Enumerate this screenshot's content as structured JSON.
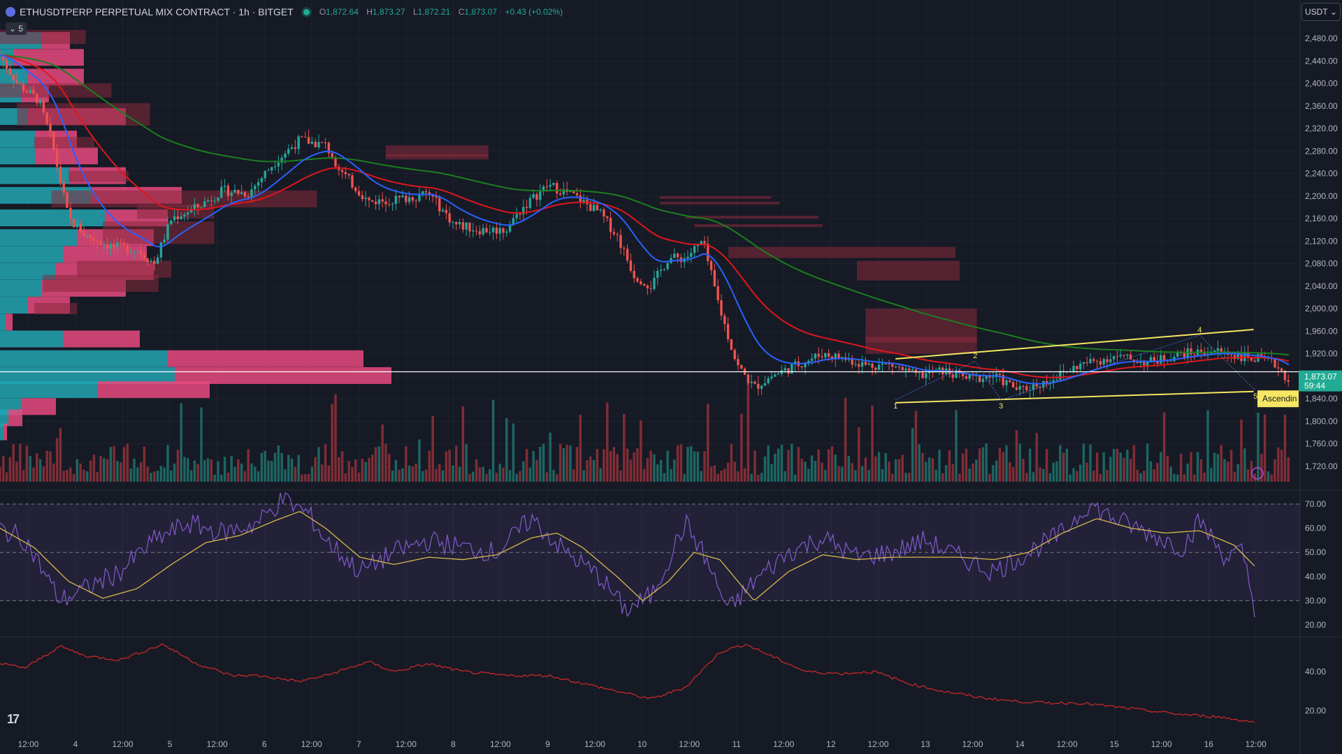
{
  "header": {
    "symbol": "ETHUSDTPERP PERPETUAL MIX CONTRACT · 1h · BITGET",
    "o_label": "O",
    "o": "1,872.64",
    "h_label": "H",
    "h": "1,873.27",
    "l_label": "L",
    "l": "1,872.21",
    "c_label": "C",
    "c": "1,873.07",
    "change": "+0.43 (+0.02%)"
  },
  "collapse_label": "5",
  "currency": "USDT",
  "logo": "17",
  "colors": {
    "bg": "#161a25",
    "up": "#26a69a",
    "down": "#ef5350",
    "ema_fast": "#2962ff",
    "ema_mid": "#e0161c",
    "ema_slow": "#1b7f1e",
    "channel": "#f5e663",
    "rsi": "#7e57c2",
    "rsi_ma": "#d8b84a",
    "bottom_line": "#c62828"
  },
  "price_label": {
    "value": "1,873.07",
    "countdown": "59:44"
  },
  "pattern_label": "Ascendin",
  "chart_data": {
    "type": "candlestick",
    "price_axis": {
      "min": 1700,
      "max": 2500,
      "ticks": [
        "2,480.00",
        "2,440.00",
        "2,400.00",
        "2,360.00",
        "2,320.00",
        "2,280.00",
        "2,240.00",
        "2,200.00",
        "2,160.00",
        "2,120.00",
        "2,080.00",
        "2,040.00",
        "2,000.00",
        "1,960.00",
        "1,920.00",
        "1,880.00",
        "1,840.00",
        "1,800.00",
        "1,760.00",
        "1,720.00"
      ]
    },
    "time_axis": [
      "12:00",
      "4",
      "12:00",
      "5",
      "12:00",
      "6",
      "12:00",
      "7",
      "12:00",
      "8",
      "12:00",
      "9",
      "12:00",
      "10",
      "12:00",
      "11",
      "12:00",
      "12",
      "12:00",
      "13",
      "12:00",
      "14",
      "12:00",
      "15",
      "12:00",
      "16",
      "12:00"
    ],
    "price_path": [
      [
        0,
        2450
      ],
      [
        20,
        2400
      ],
      [
        45,
        2370
      ],
      [
        60,
        2300
      ],
      [
        80,
        2160
      ],
      [
        100,
        2130
      ],
      [
        130,
        2110
      ],
      [
        160,
        2105
      ],
      [
        180,
        2080
      ],
      [
        200,
        2160
      ],
      [
        230,
        2180
      ],
      [
        260,
        2210
      ],
      [
        290,
        2205
      ],
      [
        320,
        2260
      ],
      [
        350,
        2300
      ],
      [
        380,
        2290
      ],
      [
        400,
        2240
      ],
      [
        430,
        2190
      ],
      [
        470,
        2195
      ],
      [
        500,
        2205
      ],
      [
        530,
        2150
      ],
      [
        560,
        2140
      ],
      [
        590,
        2140
      ],
      [
        610,
        2180
      ],
      [
        640,
        2220
      ],
      [
        670,
        2200
      ],
      [
        700,
        2170
      ],
      [
        720,
        2130
      ],
      [
        740,
        2060
      ],
      [
        760,
        2040
      ],
      [
        780,
        2090
      ],
      [
        800,
        2090
      ],
      [
        820,
        2120
      ],
      [
        840,
        2000
      ],
      [
        860,
        1900
      ],
      [
        880,
        1860
      ],
      [
        900,
        1880
      ],
      [
        930,
        1900
      ],
      [
        960,
        1920
      ],
      [
        990,
        1910
      ],
      [
        1010,
        1900
      ],
      [
        1040,
        1900
      ],
      [
        1070,
        1880
      ],
      [
        1100,
        1890
      ],
      [
        1130,
        1875
      ],
      [
        1160,
        1880
      ],
      [
        1190,
        1855
      ],
      [
        1220,
        1870
      ],
      [
        1260,
        1900
      ],
      [
        1300,
        1915
      ],
      [
        1340,
        1905
      ],
      [
        1380,
        1920
      ],
      [
        1420,
        1925
      ],
      [
        1450,
        1915
      ],
      [
        1470,
        1910
      ],
      [
        1490,
        1900
      ],
      [
        1505,
        1870
      ]
    ],
    "ema_levels_end": {
      "fast": 1905,
      "mid": 1910,
      "slow": 1905
    },
    "channel": {
      "upper": [
        [
          1045,
          1911
        ],
        [
          1463,
          1963
        ]
      ],
      "lower": [
        [
          1045,
          1833
        ],
        [
          1463,
          1853
        ]
      ]
    },
    "wave_labels": [
      "1",
      "2",
      "3",
      "4",
      "5"
    ],
    "horizontal_line": 1888,
    "rsi": {
      "ticks": [
        "70.00",
        "60.00",
        "50.00",
        "40.00",
        "30.00",
        "20.00"
      ],
      "upper": 70,
      "lower": 30,
      "path": [
        [
          0,
          60
        ],
        [
          30,
          55
        ],
        [
          70,
          30
        ],
        [
          100,
          35
        ],
        [
          140,
          42
        ],
        [
          180,
          55
        ],
        [
          220,
          62
        ],
        [
          260,
          58
        ],
        [
          300,
          62
        ],
        [
          330,
          72
        ],
        [
          360,
          66
        ],
        [
          380,
          55
        ],
        [
          420,
          42
        ],
        [
          460,
          50
        ],
        [
          500,
          55
        ],
        [
          540,
          52
        ],
        [
          580,
          50
        ],
        [
          620,
          64
        ],
        [
          660,
          50
        ],
        [
          700,
          40
        ],
        [
          730,
          26
        ],
        [
          760,
          32
        ],
        [
          800,
          62
        ],
        [
          820,
          50
        ],
        [
          850,
          26
        ],
        [
          880,
          38
        ],
        [
          920,
          50
        ],
        [
          960,
          56
        ],
        [
          1000,
          48
        ],
        [
          1040,
          50
        ],
        [
          1080,
          55
        ],
        [
          1120,
          48
        ],
        [
          1160,
          42
        ],
        [
          1200,
          50
        ],
        [
          1240,
          58
        ],
        [
          1270,
          70
        ],
        [
          1300,
          64
        ],
        [
          1340,
          58
        ],
        [
          1380,
          52
        ],
        [
          1400,
          63
        ],
        [
          1430,
          48
        ],
        [
          1450,
          50
        ],
        [
          1465,
          26
        ]
      ],
      "ma_path": [
        [
          0,
          60
        ],
        [
          40,
          52
        ],
        [
          80,
          38
        ],
        [
          120,
          31
        ],
        [
          160,
          35
        ],
        [
          200,
          45
        ],
        [
          240,
          54
        ],
        [
          280,
          57
        ],
        [
          320,
          63
        ],
        [
          350,
          67
        ],
        [
          380,
          60
        ],
        [
          420,
          48
        ],
        [
          460,
          45
        ],
        [
          500,
          48
        ],
        [
          540,
          47
        ],
        [
          580,
          49
        ],
        [
          620,
          56
        ],
        [
          650,
          58
        ],
        [
          680,
          52
        ],
        [
          720,
          40
        ],
        [
          750,
          30
        ],
        [
          780,
          38
        ],
        [
          810,
          50
        ],
        [
          840,
          47
        ],
        [
          880,
          30
        ],
        [
          920,
          42
        ],
        [
          960,
          49
        ],
        [
          1000,
          47
        ],
        [
          1040,
          48
        ],
        [
          1080,
          48
        ],
        [
          1120,
          48
        ],
        [
          1160,
          47
        ],
        [
          1200,
          50
        ],
        [
          1240,
          58
        ],
        [
          1280,
          64
        ],
        [
          1320,
          60
        ],
        [
          1360,
          58
        ],
        [
          1400,
          59
        ],
        [
          1440,
          53
        ],
        [
          1465,
          44
        ]
      ]
    },
    "bottom_indicator": {
      "ticks": [
        "40.00",
        "20.00"
      ],
      "path": [
        [
          0,
          44
        ],
        [
          30,
          42
        ],
        [
          70,
          53
        ],
        [
          100,
          48
        ],
        [
          140,
          46
        ],
        [
          190,
          54
        ],
        [
          230,
          44
        ],
        [
          270,
          38
        ],
        [
          300,
          38
        ],
        [
          350,
          35
        ],
        [
          380,
          38
        ],
        [
          430,
          45
        ],
        [
          460,
          40
        ],
        [
          500,
          44
        ],
        [
          540,
          40
        ],
        [
          590,
          38
        ],
        [
          640,
          38
        ],
        [
          680,
          34
        ],
        [
          720,
          30
        ],
        [
          760,
          26
        ],
        [
          800,
          32
        ],
        [
          840,
          50
        ],
        [
          870,
          54
        ],
        [
          900,
          48
        ],
        [
          940,
          40
        ],
        [
          980,
          39
        ],
        [
          1020,
          40
        ],
        [
          1060,
          34
        ],
        [
          1100,
          30
        ],
        [
          1140,
          27
        ],
        [
          1180,
          25
        ],
        [
          1220,
          24
        ],
        [
          1260,
          24
        ],
        [
          1300,
          22
        ],
        [
          1340,
          20
        ],
        [
          1380,
          18
        ],
        [
          1420,
          17
        ],
        [
          1465,
          14
        ]
      ]
    }
  }
}
